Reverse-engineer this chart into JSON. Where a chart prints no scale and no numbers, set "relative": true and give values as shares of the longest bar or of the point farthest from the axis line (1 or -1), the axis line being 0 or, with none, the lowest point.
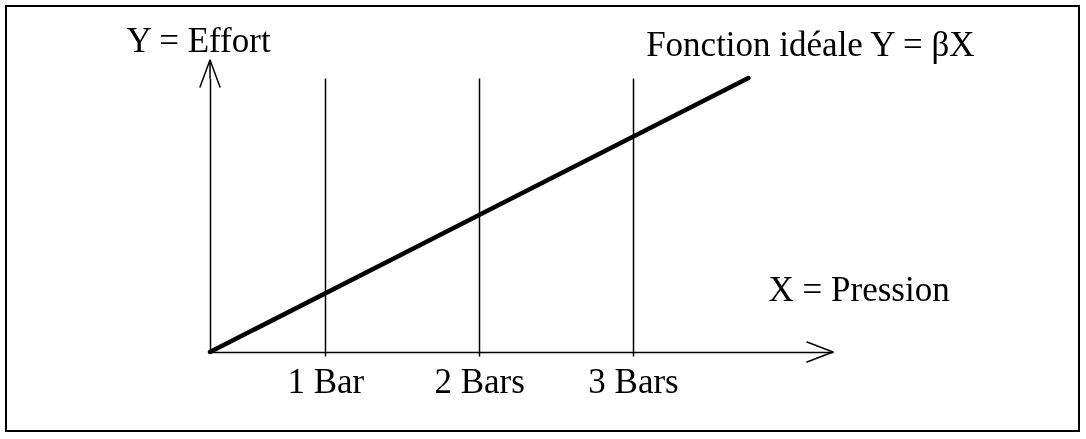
{
  "chart_data": {
    "type": "line",
    "xlabel": "X = Pression",
    "ylabel": "Y = Effort",
    "x": [
      0.25,
      3.75
    ],
    "series": [
      {
        "name": "Fonction idéale Y = βX",
        "color": "#000000",
        "values": [
          0,
          1
        ]
      }
    ],
    "relative": true,
    "xlim": [
      0.25,
      4.3
    ],
    "xticks": [
      {
        "value": 1,
        "label": "1 Bar"
      },
      {
        "value": 2,
        "label": "2 Bars"
      },
      {
        "value": 3,
        "label": "3 Bars"
      }
    ],
    "grid": "x",
    "line_style": "solid",
    "tick_labels": "x"
  }
}
